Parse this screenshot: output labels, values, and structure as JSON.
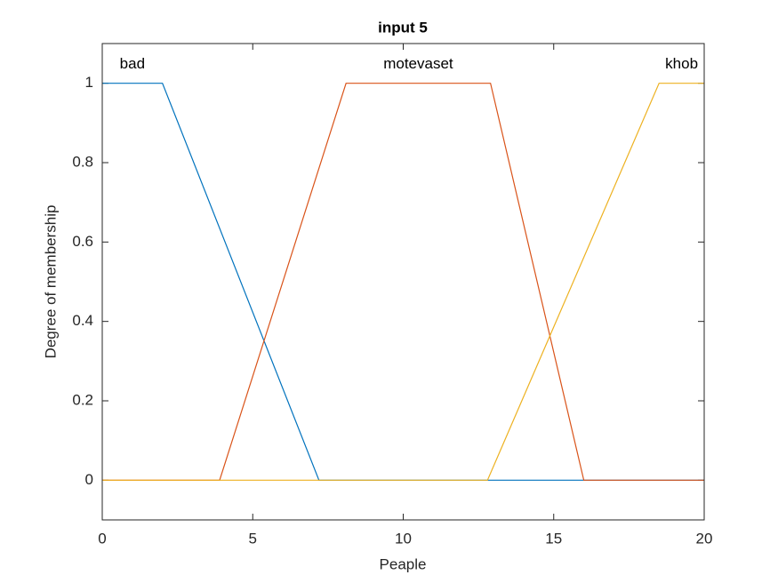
{
  "chart_data": {
    "type": "line",
    "title": "input 5",
    "xlabel": "Peaple",
    "ylabel": "Degree of membership",
    "xlim": [
      0,
      20
    ],
    "ylim": [
      -0.1,
      1.1
    ],
    "xticks": [
      0,
      5,
      10,
      15,
      20
    ],
    "yticks": [
      0,
      0.2,
      0.4,
      0.6,
      0.8,
      1
    ],
    "grid": false,
    "series": [
      {
        "name": "bad",
        "color": "#0072BD",
        "x": [
          0,
          2,
          7.2,
          20
        ],
        "values": [
          1,
          1,
          0,
          0
        ]
      },
      {
        "name": "motevaset",
        "color": "#D95319",
        "x": [
          0,
          3.9,
          8.1,
          12.9,
          16,
          20
        ],
        "values": [
          0,
          0,
          1,
          1,
          0,
          0
        ]
      },
      {
        "name": "khob",
        "color": "#EDB120",
        "x": [
          0,
          12.8,
          18.5,
          20
        ],
        "values": [
          0,
          0,
          1,
          1
        ]
      }
    ]
  }
}
